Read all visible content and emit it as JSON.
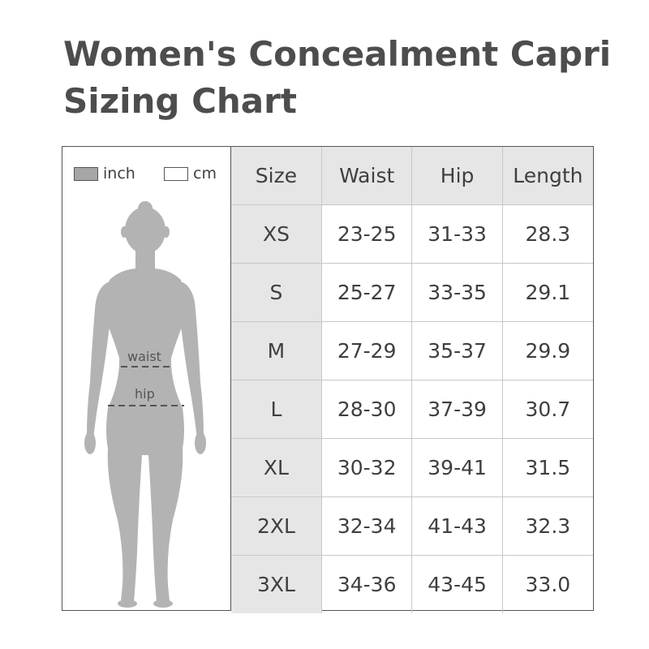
{
  "title": {
    "line1": "Women's Concealment Capri",
    "line2": "Sizing Chart"
  },
  "unit_legend": {
    "inch_label": "inch",
    "cm_label": "cm",
    "inch_color": "#a6a6a6",
    "cm_color": "#ffffff"
  },
  "figure": {
    "waist_label": "waist",
    "hip_label": "hip",
    "body_color": "#b3b3b3"
  },
  "table": {
    "headers": [
      "Size",
      "Waist",
      "Hip",
      "Length"
    ],
    "rows": [
      [
        "XS",
        "23-25",
        "31-33",
        "28.3"
      ],
      [
        "S",
        "25-27",
        "33-35",
        "29.1"
      ],
      [
        "M",
        "27-29",
        "35-37",
        "29.9"
      ],
      [
        "L",
        "28-30",
        "37-39",
        "30.7"
      ],
      [
        "XL",
        "30-32",
        "39-41",
        "31.5"
      ],
      [
        "2XL",
        "32-34",
        "41-43",
        "32.3"
      ],
      [
        "3XL",
        "34-36",
        "43-45",
        "33.0"
      ]
    ]
  }
}
